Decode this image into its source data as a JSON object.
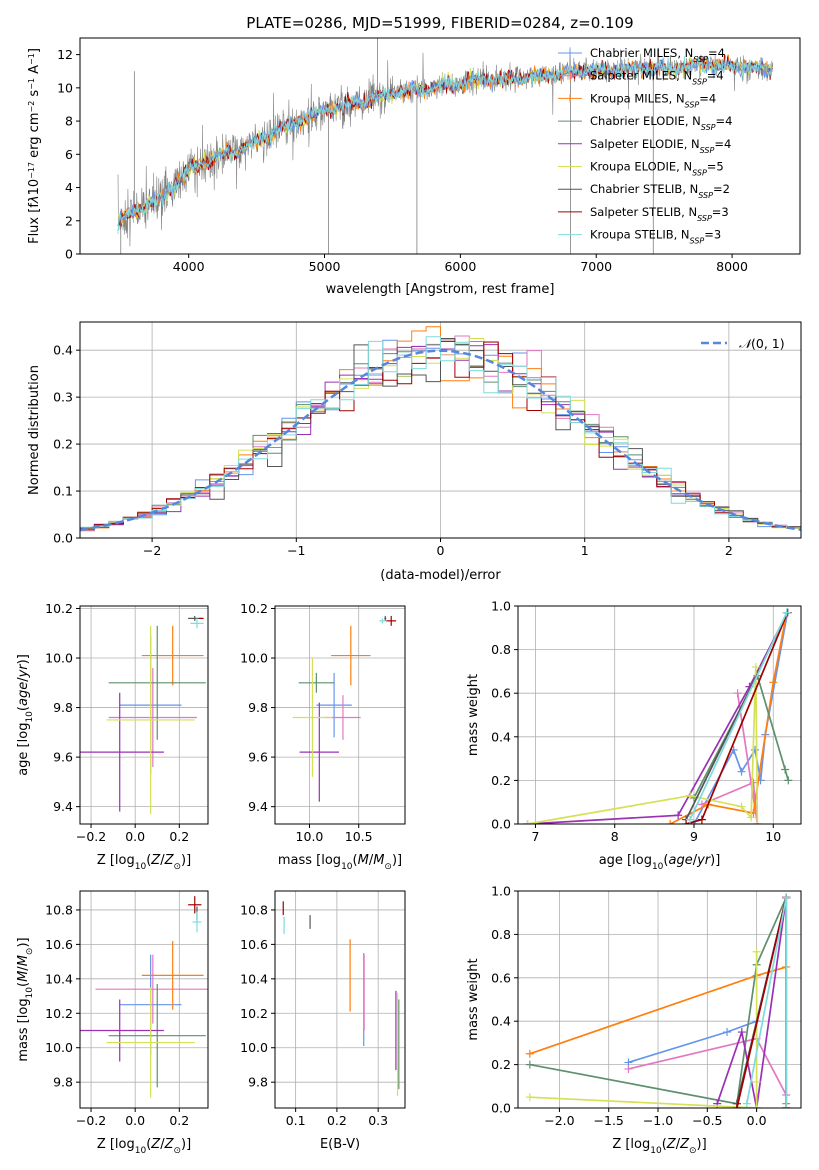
{
  "figure": {
    "title": "PLATE=0286, MJD=51999, FIBERID=0284, z=0.109"
  },
  "colors": {
    "chabrier_miles": "#6495ed",
    "salpeter_miles": "#e377c2",
    "kroupa_miles": "#ff7f0e",
    "chabrier_elodie": "#5f8f6f",
    "salpeter_elodie": "#9b30b5",
    "kroupa_elodie": "#d4e157",
    "chabrier_stelib": "#555555",
    "salpeter_stelib": "#a00000",
    "kroupa_stelib": "#7fdbdb",
    "data_spectrum": "#808080",
    "normal": "#5588dd",
    "grid": "#b0b0b0"
  },
  "chart_data": [
    {
      "type": "line",
      "panel": "spectrum",
      "xlabel": "wavelength [Angstrom, rest frame]",
      "ylabel_html": "Flux [f<tspan font-style='italic'>λ</tspan>10<tspan baseline-shift='super' font-size='8'>−17</tspan> erg cm<tspan baseline-shift='super' font-size='8'>−2</tspan> s<tspan baseline-shift='super' font-size='8'>−1</tspan> A<tspan baseline-shift='super' font-size='8'>−1</tspan>]",
      "xlim": [
        3200,
        8500
      ],
      "ylim": [
        0,
        13
      ],
      "xticks": [
        4000,
        5000,
        6000,
        7000,
        8000
      ],
      "yticks": [
        0,
        2,
        4,
        6,
        8,
        10,
        12
      ],
      "grid": false,
      "legend_placement": "upper-right",
      "continuum": {
        "x": [
          3480,
          3600,
          3700,
          3800,
          3900,
          4000,
          4100,
          4200,
          4400,
          4600,
          4800,
          5000,
          5200,
          5400,
          5600,
          5800,
          6000,
          6200,
          6400,
          6600,
          6800,
          7000,
          7200,
          7400,
          7600,
          7800,
          8000,
          8200,
          8300
        ],
        "y": [
          2.0,
          2.5,
          3.0,
          3.3,
          4.2,
          5.0,
          5.5,
          5.8,
          6.4,
          7.2,
          8.0,
          8.6,
          9.0,
          9.5,
          9.8,
          10.0,
          10.3,
          10.5,
          10.6,
          10.7,
          10.9,
          11.0,
          11.1,
          11.2,
          11.2,
          11.4,
          11.3,
          11.2,
          11.0
        ]
      },
      "spikes": [
        {
          "x": 3500,
          "y": 0
        },
        {
          "x": 3600,
          "y": 11.0
        },
        {
          "x": 5030,
          "y": 0
        },
        {
          "x": 5680,
          "y": 0
        },
        {
          "x": 6810,
          "y": 0
        },
        {
          "x": 7420,
          "y": 0
        },
        {
          "x": 5390,
          "y": 13
        }
      ],
      "legend": [
        {
          "label": "Chabrier MILES, N",
          "sub": "SSP",
          "suffix": "=4",
          "color_key": "chabrier_miles",
          "marker": "+"
        },
        {
          "label": "Salpeter MILES, N",
          "sub": "SSP",
          "suffix": "=4",
          "color_key": "salpeter_miles",
          "marker": "+"
        },
        {
          "label": "Kroupa MILES, N",
          "sub": "SSP",
          "suffix": "=4",
          "color_key": "kroupa_miles",
          "marker": "+"
        },
        {
          "label": "Chabrier ELODIE, N",
          "sub": "SSP",
          "suffix": "=4",
          "color_key": "chabrier_elodie",
          "marker": ""
        },
        {
          "label": "Salpeter ELODIE, N",
          "sub": "SSP",
          "suffix": "=4",
          "color_key": "salpeter_elodie",
          "marker": ""
        },
        {
          "label": "Kroupa ELODIE, N",
          "sub": "SSP",
          "suffix": "=5",
          "color_key": "kroupa_elodie",
          "marker": ""
        },
        {
          "label": "Chabrier STELIB, N",
          "sub": "SSP",
          "suffix": "=2",
          "color_key": "chabrier_stelib",
          "marker": ""
        },
        {
          "label": "Salpeter STELIB, N",
          "sub": "SSP",
          "suffix": "=3",
          "color_key": "salpeter_stelib",
          "marker": ""
        },
        {
          "label": "Kroupa STELIB, N",
          "sub": "SSP",
          "suffix": "=3",
          "color_key": "kroupa_stelib",
          "marker": ""
        }
      ]
    },
    {
      "type": "histogram",
      "panel": "residuals",
      "xlabel": "(data-model)/error",
      "ylabel": "Normed distribution",
      "xlim": [
        -2.5,
        2.5
      ],
      "ylim": [
        0,
        0.46
      ],
      "xticks": [
        -2,
        -1,
        0,
        1,
        2
      ],
      "yticks": [
        0.0,
        0.1,
        0.2,
        0.3,
        0.4
      ],
      "grid": true,
      "legend_label": "N(0, 1)",
      "legend_placement": "upper-right",
      "bin_width": 0.1,
      "bin_start": -2.5
    },
    {
      "type": "scatter",
      "panel": "age_vs_Z",
      "xlabel": "Z [log10(Z/Z⊙)]",
      "ylabel": "age  [log10(age/yr)]",
      "xlim": [
        -0.25,
        0.33
      ],
      "ylim": [
        9.33,
        10.21
      ],
      "xticks": [
        -0.2,
        0.0,
        0.2
      ],
      "yticks": [
        9.4,
        9.6,
        9.8,
        10.0,
        10.2
      ],
      "grid": true,
      "points": [
        {
          "x": 0.07,
          "y": 9.81,
          "xerr": 0.14,
          "yerr": 0.28,
          "color_key": "chabrier_miles"
        },
        {
          "x": 0.08,
          "y": 9.76,
          "xerr": 0.2,
          "yerr": 0.2,
          "color_key": "salpeter_miles"
        },
        {
          "x": 0.17,
          "y": 10.01,
          "xerr": 0.14,
          "yerr": 0.12,
          "color_key": "kroupa_miles"
        },
        {
          "x": 0.1,
          "y": 9.9,
          "xerr": 0.22,
          "yerr": 0.23,
          "color_key": "chabrier_elodie"
        },
        {
          "x": -0.07,
          "y": 9.62,
          "xerr": 0.2,
          "yerr": 0.24,
          "color_key": "salpeter_elodie"
        },
        {
          "x": 0.07,
          "y": 9.75,
          "xerr": 0.2,
          "yerr": 0.38,
          "color_key": "kroupa_elodie"
        },
        {
          "x": 0.27,
          "y": 10.16,
          "xerr": 0.03,
          "yerr": 0.01,
          "color_key": "chabrier_stelib"
        },
        {
          "x": 0.3,
          "y": 10.16,
          "xerr": 0.01,
          "yerr": 0.0,
          "color_key": "salpeter_stelib"
        },
        {
          "x": 0.28,
          "y": 10.14,
          "xerr": 0.03,
          "yerr": 0.02,
          "color_key": "kroupa_stelib"
        }
      ]
    },
    {
      "type": "scatter",
      "panel": "age_vs_mass",
      "xlabel": "mass [log10(M/M⊙)]",
      "ylabel": "",
      "xlim": [
        9.65,
        10.97
      ],
      "ylim": [
        9.33,
        10.21
      ],
      "xticks": [
        10.0,
        10.5
      ],
      "yticks": [
        9.4,
        9.6,
        9.8,
        10.0,
        10.2
      ],
      "grid": true,
      "points": [
        {
          "x": 10.25,
          "y": 9.81,
          "xerr": 0.18,
          "yerr": 0.13,
          "color_key": "chabrier_miles"
        },
        {
          "x": 10.34,
          "y": 9.76,
          "xerr": 0.18,
          "yerr": 0.09,
          "color_key": "salpeter_miles"
        },
        {
          "x": 10.42,
          "y": 10.01,
          "xerr": 0.2,
          "yerr": 0.12,
          "color_key": "kroupa_miles"
        },
        {
          "x": 10.07,
          "y": 9.9,
          "xerr": 0.18,
          "yerr": 0.04,
          "color_key": "chabrier_elodie"
        },
        {
          "x": 10.1,
          "y": 9.62,
          "xerr": 0.2,
          "yerr": 0.2,
          "color_key": "salpeter_elodie"
        },
        {
          "x": 10.03,
          "y": 9.76,
          "xerr": 0.2,
          "yerr": 0.24,
          "color_key": "kroupa_elodie"
        },
        {
          "x": 10.77,
          "y": 10.16,
          "xerr": 0.01,
          "yerr": 0.01,
          "color_key": "chabrier_stelib"
        },
        {
          "x": 10.83,
          "y": 10.15,
          "xerr": 0.05,
          "yerr": 0.02,
          "color_key": "salpeter_stelib"
        },
        {
          "x": 10.74,
          "y": 10.15,
          "xerr": 0.03,
          "yerr": 0.01,
          "color_key": "kroupa_stelib"
        }
      ]
    },
    {
      "type": "line",
      "panel": "weight_vs_age",
      "xlabel": "age  [log10(age/yr)]",
      "ylabel": "mass weight",
      "xlim": [
        6.78,
        10.35
      ],
      "ylim": [
        0,
        1
      ],
      "xticks": [
        7,
        8,
        9,
        10
      ],
      "yticks": [
        0.0,
        0.2,
        0.4,
        0.6,
        0.8,
        1.0
      ],
      "grid": true,
      "series": [
        {
          "color_key": "chabrier_miles",
          "x": [
            9.0,
            9.5,
            9.6,
            9.77,
            9.84,
            9.9,
            10.18
          ],
          "y": [
            0.0,
            0.34,
            0.24,
            0.34,
            0.2,
            0.41,
            0.97
          ]
        },
        {
          "color_key": "salpeter_miles",
          "x": [
            9.1,
            9.75,
            9.8,
            9.55
          ],
          "y": [
            0.09,
            0.19,
            0.0,
            0.6
          ]
        },
        {
          "color_key": "kroupa_miles",
          "x": [
            8.7,
            9.18,
            9.75,
            10.0,
            10.17
          ],
          "y": [
            0.0,
            0.09,
            0.05,
            0.65,
            0.97
          ]
        },
        {
          "color_key": "chabrier_elodie",
          "x": [
            9.0,
            9.8,
            10.15,
            10.19
          ],
          "y": [
            0.12,
            0.68,
            0.25,
            0.2
          ]
        },
        {
          "color_key": "salpeter_elodie",
          "x": [
            6.9,
            8.8,
            9.7,
            10.18
          ],
          "y": [
            0.0,
            0.04,
            0.63,
            0.97
          ]
        },
        {
          "color_key": "kroupa_elodie",
          "x": [
            6.9,
            8.95,
            9.6,
            9.72,
            9.78,
            9.8
          ],
          "y": [
            0.0,
            0.13,
            0.08,
            0.03,
            0.72,
            0.0
          ]
        },
        {
          "color_key": "chabrier_stelib",
          "x": [
            8.9,
            10.18
          ],
          "y": [
            0.02,
            0.97
          ]
        },
        {
          "color_key": "salpeter_stelib",
          "x": [
            8.9,
            9.1,
            10.18
          ],
          "y": [
            0.0,
            0.02,
            0.97
          ]
        },
        {
          "color_key": "kroupa_stelib",
          "x": [
            8.95,
            10.17
          ],
          "y": [
            0.02,
            0.97
          ]
        }
      ]
    },
    {
      "type": "scatter",
      "panel": "mass_vs_Z",
      "xlabel": "Z [log10(Z/Z⊙)]",
      "ylabel": "mass [log10(M/M⊙)]",
      "xlim": [
        -0.25,
        0.33
      ],
      "ylim": [
        9.65,
        10.91
      ],
      "xticks": [
        -0.2,
        0.0,
        0.2
      ],
      "yticks": [
        9.8,
        10.0,
        10.2,
        10.4,
        10.6,
        10.8
      ],
      "grid": true,
      "points": [
        {
          "x": 0.07,
          "y": 10.25,
          "xerr": 0.14,
          "yerr": 0.29,
          "color_key": "chabrier_miles"
        },
        {
          "x": 0.08,
          "y": 10.34,
          "xerr": 0.26,
          "yerr": 0.2,
          "color_key": "salpeter_miles"
        },
        {
          "x": 0.17,
          "y": 10.42,
          "xerr": 0.14,
          "yerr": 0.2,
          "color_key": "kroupa_miles"
        },
        {
          "x": 0.1,
          "y": 10.07,
          "xerr": 0.22,
          "yerr": 0.3,
          "color_key": "chabrier_elodie"
        },
        {
          "x": -0.07,
          "y": 10.1,
          "xerr": 0.2,
          "yerr": 0.18,
          "color_key": "salpeter_elodie"
        },
        {
          "x": 0.07,
          "y": 10.03,
          "xerr": 0.2,
          "yerr": 0.32,
          "color_key": "kroupa_elodie"
        },
        {
          "x": 0.28,
          "y": 10.78,
          "xerr": 0.0,
          "yerr": 0.04,
          "color_key": "chabrier_stelib"
        },
        {
          "x": 0.27,
          "y": 10.83,
          "xerr": 0.03,
          "yerr": 0.05,
          "color_key": "salpeter_stelib"
        },
        {
          "x": 0.28,
          "y": 10.73,
          "xerr": 0.02,
          "yerr": 0.06,
          "color_key": "kroupa_stelib"
        }
      ]
    },
    {
      "type": "scatter",
      "panel": "mass_vs_ebv",
      "xlabel": "E(B-V)",
      "ylabel": "",
      "xlim": [
        0.05,
        0.365
      ],
      "ylim": [
        9.65,
        10.91
      ],
      "xticks": [
        0.1,
        0.2,
        0.3
      ],
      "yticks": [
        9.8,
        10.0,
        10.2,
        10.4,
        10.6,
        10.8
      ],
      "grid": true,
      "points": [
        {
          "x": 0.265,
          "y": 10.28,
          "xerr": 0.0,
          "yerr": 0.27,
          "color_key": "chabrier_miles"
        },
        {
          "x": 0.266,
          "y": 10.32,
          "xerr": 0.0,
          "yerr": 0.22,
          "color_key": "salpeter_miles"
        },
        {
          "x": 0.232,
          "y": 10.42,
          "xerr": 0.0,
          "yerr": 0.21,
          "color_key": "kroupa_miles"
        },
        {
          "x": 0.35,
          "y": 10.02,
          "xerr": 0.0,
          "yerr": 0.26,
          "color_key": "chabrier_elodie"
        },
        {
          "x": 0.343,
          "y": 10.1,
          "xerr": 0.0,
          "yerr": 0.23,
          "color_key": "salpeter_elodie"
        },
        {
          "x": 0.347,
          "y": 10.02,
          "xerr": 0.0,
          "yerr": 0.3,
          "color_key": "kroupa_elodie"
        },
        {
          "x": 0.135,
          "y": 10.73,
          "xerr": 0.0,
          "yerr": 0.04,
          "color_key": "chabrier_stelib"
        },
        {
          "x": 0.07,
          "y": 10.81,
          "xerr": 0.0,
          "yerr": 0.04,
          "color_key": "salpeter_stelib"
        },
        {
          "x": 0.072,
          "y": 10.71,
          "xerr": 0.0,
          "yerr": 0.05,
          "color_key": "kroupa_stelib"
        }
      ]
    },
    {
      "type": "line",
      "panel": "weight_vs_Z",
      "xlabel": "Z [log10(Z/Z⊙)]",
      "ylabel": "mass weight",
      "xlim": [
        -2.42,
        0.45
      ],
      "ylim": [
        0,
        1
      ],
      "xticks": [
        -2.0,
        -1.5,
        -1.0,
        -0.5,
        0.0
      ],
      "yticks": [
        0.0,
        0.2,
        0.4,
        0.6,
        0.8,
        1.0
      ],
      "grid": true,
      "series": [
        {
          "color_key": "chabrier_miles",
          "x": [
            -1.3,
            -0.3,
            0.0,
            0.3
          ],
          "y": [
            0.21,
            0.35,
            0.4,
            0.97
          ]
        },
        {
          "color_key": "salpeter_miles",
          "x": [
            -1.3,
            0.0,
            0.3,
            0.3
          ],
          "y": [
            0.18,
            0.32,
            0.06,
            0.97
          ]
        },
        {
          "color_key": "kroupa_miles",
          "x": [
            -2.3,
            0.0,
            0.3,
            0.3
          ],
          "y": [
            0.25,
            0.61,
            0.65,
            0.02
          ]
        },
        {
          "color_key": "chabrier_elodie",
          "x": [
            -2.3,
            -0.2,
            0.0,
            0.3
          ],
          "y": [
            0.2,
            0.02,
            0.66,
            0.97
          ]
        },
        {
          "color_key": "salpeter_elodie",
          "x": [
            -0.4,
            -0.15,
            0.0,
            0.3
          ],
          "y": [
            0.02,
            0.35,
            0.0,
            0.97
          ]
        },
        {
          "color_key": "kroupa_elodie",
          "x": [
            -2.3,
            0.0,
            0.0,
            0.0
          ],
          "y": [
            0.05,
            0.0,
            0.72,
            0.12
          ]
        },
        {
          "color_key": "chabrier_stelib",
          "x": [
            -0.2,
            0.3,
            0.3
          ],
          "y": [
            0.02,
            0.97,
            0.0
          ]
        },
        {
          "color_key": "salpeter_stelib",
          "x": [
            -0.2,
            0.3,
            0.3
          ],
          "y": [
            0.0,
            0.97,
            0.0
          ]
        },
        {
          "color_key": "kroupa_stelib",
          "x": [
            -0.1,
            0.3,
            0.3
          ],
          "y": [
            0.02,
            0.97,
            0.0
          ]
        }
      ]
    }
  ]
}
